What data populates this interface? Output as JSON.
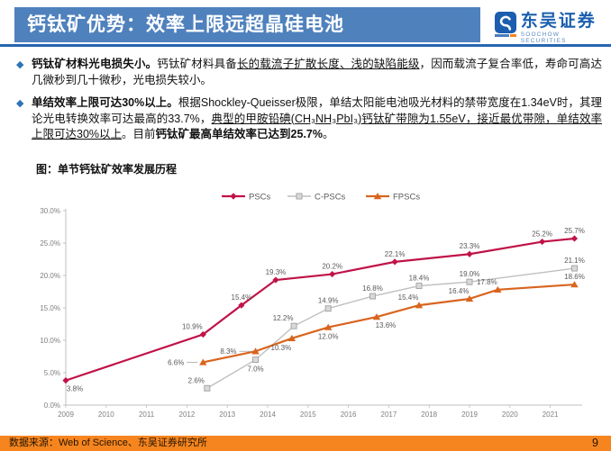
{
  "header": {
    "title": "钙钛矿优势：效率上限远超晶硅电池",
    "logo": {
      "cn": "东吴证券",
      "en": "SOOCHOW SECURITIES"
    }
  },
  "bullets": [
    {
      "segments": [
        {
          "t": "钙钛矿材料光电损失小。",
          "b": true
        },
        {
          "t": "钙钛矿材料具备"
        },
        {
          "t": "长的载流子扩散长度、浅的缺陷能级",
          "u": true
        },
        {
          "t": "，因而载流子复合率低，寿命可高达几微秒到几十微秒，光电损失较小。"
        }
      ]
    },
    {
      "segments": [
        {
          "t": "单结效率上限可达30%以上。",
          "b": true
        },
        {
          "t": "根据Shockley-Queisser极限，单结太阳能电池吸光材料的禁带宽度在1.34eV时，其理论光电转换效率可达最高的33.7%，"
        },
        {
          "t": "典型的甲胺铅碘(CH₃NH₃PbI₃)钙钛矿带隙为1.55eV，接近最优带隙，单结效率上限可达30%以上",
          "u": true
        },
        {
          "t": "。目前"
        },
        {
          "t": "钙钛矿最高单结效率已达到25.7%",
          "b": true
        },
        {
          "t": "。"
        }
      ]
    }
  ],
  "chart_caption": "图：单节钙钛矿效率发展历程",
  "chart_data": {
    "type": "line",
    "title": "单节钙钛矿效率发展历程",
    "grid": false,
    "legend_position": "top-center",
    "x_axis": {
      "ticks": [
        2009,
        2010,
        2011,
        2012,
        2013,
        2014,
        2015,
        2016,
        2017,
        2018,
        2019,
        2020,
        2021
      ],
      "range": [
        2009,
        2022
      ]
    },
    "y_axis": {
      "tick_labels": [
        "0.0%",
        "5.0%",
        "10.0%",
        "15.0%",
        "20.0%",
        "25.0%",
        "30.0%"
      ],
      "tick_values": [
        0,
        5,
        10,
        15,
        20,
        25,
        30
      ],
      "range": [
        0,
        30
      ]
    },
    "series": [
      {
        "name": "PSCs",
        "color": "#C01348",
        "marker": "diamond",
        "line_width": 2.2,
        "points": [
          {
            "x": 2009.0,
            "y": 3.8,
            "label": "3.8%",
            "pos": "below-right"
          },
          {
            "x": 2012.4,
            "y": 10.9,
            "label": "10.9%",
            "pos": "above-left"
          },
          {
            "x": 2013.35,
            "y": 15.4,
            "label": "15.4%",
            "pos": "above"
          },
          {
            "x": 2014.2,
            "y": 19.3,
            "label": "19.3%",
            "pos": "above"
          },
          {
            "x": 2015.6,
            "y": 20.2,
            "label": "20.2%",
            "pos": "above"
          },
          {
            "x": 2017.15,
            "y": 22.1,
            "label": "22.1%",
            "pos": "above"
          },
          {
            "x": 2019.0,
            "y": 23.3,
            "label": "23.3%",
            "pos": "above"
          },
          {
            "x": 2020.8,
            "y": 25.2,
            "label": "25.2%",
            "pos": "above"
          },
          {
            "x": 2021.6,
            "y": 25.7,
            "label": "25.7%",
            "pos": "above"
          }
        ]
      },
      {
        "name": "C-PSCs",
        "color": "#BFBFBF",
        "marker": "square",
        "line_width": 1.4,
        "marker_fill": "#D9D9D9",
        "marker_stroke": "#A6A6A6",
        "points": [
          {
            "x": 2012.5,
            "y": 2.6,
            "label": "2.6%",
            "pos": "above-left"
          },
          {
            "x": 2013.7,
            "y": 7.0,
            "label": "7.0%",
            "pos": "below"
          },
          {
            "x": 2014.65,
            "y": 12.2,
            "label": "12.2%",
            "pos": "above-left"
          },
          {
            "x": 2015.5,
            "y": 14.9,
            "label": "14.9%",
            "pos": "above"
          },
          {
            "x": 2016.6,
            "y": 16.8,
            "label": "16.8%",
            "pos": "above"
          },
          {
            "x": 2017.75,
            "y": 18.4,
            "label": "18.4%",
            "pos": "above"
          },
          {
            "x": 2019.0,
            "y": 19.0,
            "label": "19.0%",
            "pos": "above"
          },
          {
            "x": 2021.6,
            "y": 21.1,
            "label": "21.1%",
            "pos": "above"
          }
        ]
      },
      {
        "name": "FPSCs",
        "color": "#D9641E",
        "marker": "triangle",
        "line_width": 2.2,
        "points": [
          {
            "x": 2012.4,
            "y": 6.6,
            "label": "6.6%",
            "pos": "left-leader"
          },
          {
            "x": 2013.7,
            "y": 8.3,
            "label": "8.3%",
            "pos": "left-leader"
          },
          {
            "x": 2014.6,
            "y": 10.3,
            "label": "10.3%",
            "pos": "below-left"
          },
          {
            "x": 2015.5,
            "y": 12.0,
            "label": "12.0%",
            "pos": "below"
          },
          {
            "x": 2016.7,
            "y": 13.6,
            "label": "13.6%",
            "pos": "below-right"
          },
          {
            "x": 2017.75,
            "y": 15.4,
            "label": "15.4%",
            "pos": "above-left"
          },
          {
            "x": 2019.0,
            "y": 16.4,
            "label": "16.4%",
            "pos": "above-left"
          },
          {
            "x": 2019.7,
            "y": 17.8,
            "label": "17.8%",
            "pos": "above-left"
          },
          {
            "x": 2021.6,
            "y": 18.6,
            "label": "18.6%",
            "pos": "above"
          }
        ]
      }
    ]
  },
  "footer": {
    "source": "数据来源：Web of Science、东吴证券研究所",
    "page": "9"
  },
  "colors": {
    "header_bar": "#4F81BD",
    "header_rule": "#2765AE",
    "logo_blue": "#1B5EAF",
    "bullet_blue": "#2E74B6",
    "footer_bar": "#F6851F",
    "label_gray": "#595959",
    "axis_gray": "#BFBFBF",
    "tick_text": "#7F7F7F"
  }
}
